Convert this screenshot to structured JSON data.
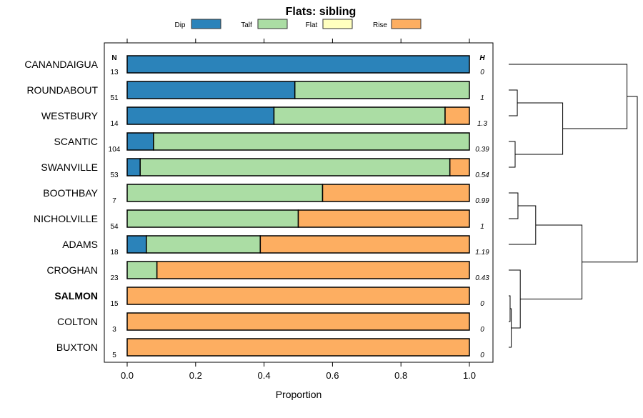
{
  "chart_data": {
    "type": "bar",
    "stacked": true,
    "orientation": "horizontal",
    "title": "Flats: sibling",
    "xlabel": "Proportion",
    "ylabel": "",
    "xlim": [
      0,
      1
    ],
    "xticks": [
      "0.0",
      "0.2",
      "0.4",
      "0.6",
      "0.8",
      "1.0"
    ],
    "xtick_values": [
      0,
      0.2,
      0.4,
      0.6,
      0.8,
      1.0
    ],
    "legend_position": "top",
    "n_header": "N",
    "h_header": "H",
    "series": [
      {
        "name": "Dip",
        "color": "#2B83BA",
        "values": [
          1,
          0.49,
          0.429,
          0.077,
          0.038,
          0,
          0,
          0.056,
          0,
          0,
          0,
          0
        ]
      },
      {
        "name": "Talf",
        "color": "#ABDDA4",
        "values": [
          0,
          0.51,
          0.5,
          0.923,
          0.905,
          0.571,
          0.5,
          0.333,
          0.087,
          0,
          0,
          0
        ]
      },
      {
        "name": "Flat",
        "color": "#FFFFBF",
        "values": [
          0,
          0,
          0,
          0,
          0,
          0,
          0,
          0,
          0,
          0,
          0,
          0
        ]
      },
      {
        "name": "Rise",
        "color": "#FDAE61",
        "values": [
          0,
          0,
          0.071,
          0,
          0.057,
          0.429,
          0.5,
          0.611,
          0.913,
          1,
          1,
          1
        ]
      }
    ],
    "categories": [
      "CANANDAIGUA",
      "ROUNDABOUT",
      "WESTBURY",
      "SCANTIC",
      "SWANVILLE",
      "BOOTHBAY",
      "NICHOLVILLE",
      "ADAMS",
      "CROGHAN",
      "SALMON",
      "COLTON",
      "BUXTON"
    ],
    "highlighted_category": "SALMON",
    "N": [
      "13",
      "51",
      "14",
      "104",
      "53",
      "7",
      "54",
      "18",
      "23",
      "15",
      "3",
      "5"
    ],
    "H": [
      "0",
      "1",
      "1.3",
      "0.39",
      "0.54",
      "0.99",
      "1",
      "1.19",
      "0.43",
      "0",
      "0",
      "0"
    ],
    "dendrogram": {
      "merges": [
        [
          1,
          2,
          0.067
        ],
        [
          3,
          4,
          0.05
        ],
        [
          12,
          13,
          0.42
        ],
        [
          0,
          14,
          0.92
        ],
        [
          5,
          6,
          0.072
        ],
        [
          16,
          7,
          0.21
        ],
        [
          9,
          10,
          0.011
        ],
        [
          18,
          11,
          0.02
        ],
        [
          8,
          19,
          0.09
        ],
        [
          17,
          20,
          0.57
        ],
        [
          15,
          21,
          1.0
        ]
      ]
    }
  }
}
